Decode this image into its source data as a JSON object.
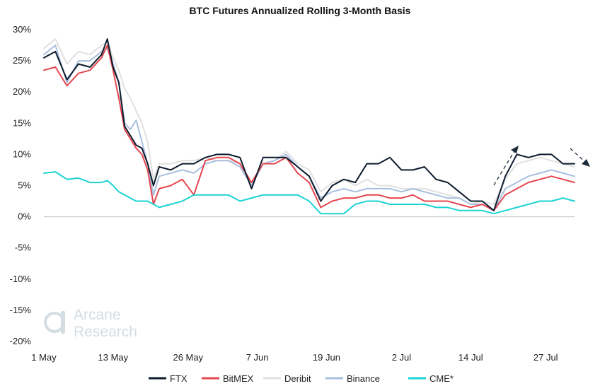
{
  "chart_data": {
    "type": "line",
    "title": "BTC Futures Annualized Rolling 3-Month Basis",
    "xlabel": "",
    "ylabel": "",
    "ylim": [
      -20,
      30
    ],
    "y_ticks": [
      {
        "value": 30,
        "label": "30%"
      },
      {
        "value": 25,
        "label": "25%"
      },
      {
        "value": 20,
        "label": "20%"
      },
      {
        "value": 15,
        "label": "15%"
      },
      {
        "value": 10,
        "label": "10%"
      },
      {
        "value": 5,
        "label": "5%"
      },
      {
        "value": 0,
        "label": "0%"
      },
      {
        "value": -5,
        "label": "-5%"
      },
      {
        "value": -10,
        "label": "-10%"
      },
      {
        "value": -15,
        "label": "-15%"
      },
      {
        "value": -20,
        "label": "-20%"
      }
    ],
    "xlim": [
      0,
      92
    ],
    "x_ticks": [
      {
        "value": 0,
        "label": "1 May"
      },
      {
        "value": 12,
        "label": "13 May"
      },
      {
        "value": 25,
        "label": "26 May"
      },
      {
        "value": 37,
        "label": "7 Jun"
      },
      {
        "value": 49,
        "label": "19 Jun"
      },
      {
        "value": 62,
        "label": "2 Jul"
      },
      {
        "value": 74,
        "label": "14 Jul"
      },
      {
        "value": 87,
        "label": "27 Jul"
      }
    ],
    "x": [
      0,
      2,
      4,
      6,
      8,
      10,
      11,
      12,
      13,
      14,
      15,
      16,
      17,
      18,
      19,
      20,
      22,
      24,
      26,
      28,
      30,
      32,
      34,
      36,
      38,
      40,
      42,
      44,
      46,
      48,
      50,
      52,
      54,
      56,
      58,
      60,
      62,
      64,
      66,
      68,
      70,
      72,
      74,
      76,
      78,
      80,
      82,
      84,
      86,
      88,
      90,
      92
    ],
    "series": [
      {
        "name": "FTX",
        "color": "#0d1b2e",
        "values": [
          25.5,
          26.5,
          22.0,
          24.5,
          24.0,
          26.0,
          28.5,
          24.0,
          21.5,
          14.5,
          13.0,
          11.5,
          11.0,
          8.5,
          5.0,
          8.0,
          7.5,
          8.5,
          8.5,
          9.5,
          10.0,
          10.0,
          9.5,
          4.5,
          9.5,
          9.5,
          9.5,
          8.0,
          6.5,
          2.5,
          5.0,
          6.0,
          5.5,
          8.5,
          8.5,
          9.5,
          7.5,
          7.5,
          8.0,
          6.0,
          5.5,
          4.0,
          2.5,
          2.5,
          1.0,
          6.5,
          10.0,
          9.5,
          10.0,
          10.0,
          8.5,
          8.5
        ]
      },
      {
        "name": "BitMEX",
        "color": "#e5474f",
        "values": [
          23.5,
          24.0,
          21.0,
          23.0,
          23.5,
          25.5,
          27.5,
          23.5,
          19.0,
          14.0,
          12.5,
          11.0,
          10.0,
          7.5,
          2.0,
          4.5,
          5.0,
          6.0,
          3.5,
          9.0,
          9.5,
          9.5,
          8.5,
          5.5,
          8.5,
          8.5,
          9.5,
          7.0,
          5.5,
          1.5,
          2.5,
          3.0,
          3.0,
          3.5,
          3.5,
          3.0,
          3.0,
          3.5,
          2.5,
          2.5,
          2.5,
          2.0,
          1.5,
          2.0,
          1.0,
          3.5,
          4.5,
          5.5,
          6.0,
          6.5,
          6.0,
          5.5
        ]
      },
      {
        "name": "Deribit",
        "color": "#e0e0e0",
        "values": [
          27.0,
          28.5,
          24.5,
          26.5,
          26.0,
          27.5,
          28.0,
          25.5,
          23.5,
          20.5,
          19.0,
          17.0,
          15.0,
          12.0,
          6.0,
          8.5,
          8.5,
          9.0,
          9.0,
          9.5,
          9.0,
          9.0,
          8.5,
          5.0,
          8.5,
          9.0,
          10.5,
          8.5,
          7.5,
          4.0,
          5.5,
          6.0,
          5.0,
          6.0,
          5.0,
          5.0,
          4.5,
          4.5,
          4.5,
          4.0,
          3.5,
          3.0,
          2.0,
          2.5,
          2.0,
          6.0,
          8.5,
          9.0,
          9.5,
          9.0,
          8.5,
          8.0
        ]
      },
      {
        "name": "Binance",
        "color": "#a9bfe0",
        "values": [
          26.0,
          27.5,
          21.5,
          25.0,
          25.0,
          26.5,
          27.0,
          24.5,
          21.5,
          15.0,
          14.0,
          15.5,
          12.0,
          8.5,
          3.5,
          6.5,
          7.0,
          7.5,
          7.0,
          8.5,
          9.0,
          9.0,
          8.0,
          5.0,
          8.5,
          9.0,
          10.0,
          8.0,
          6.5,
          3.0,
          4.0,
          4.5,
          4.0,
          4.5,
          4.5,
          4.5,
          4.0,
          4.5,
          4.0,
          3.5,
          3.0,
          3.0,
          2.0,
          2.0,
          1.0,
          4.5,
          5.5,
          6.5,
          7.0,
          7.5,
          7.0,
          6.5
        ]
      },
      {
        "name": "CME*",
        "color": "#1dd3d3",
        "values": [
          7.0,
          7.2,
          6.0,
          6.2,
          5.5,
          5.5,
          5.8,
          5.0,
          4.0,
          3.5,
          3.0,
          2.5,
          2.5,
          2.5,
          2.0,
          1.5,
          2.0,
          2.5,
          3.5,
          3.5,
          3.5,
          3.5,
          2.5,
          3.0,
          3.5,
          3.5,
          3.5,
          3.5,
          2.5,
          0.5,
          0.5,
          0.5,
          2.0,
          2.5,
          2.5,
          2.0,
          2.0,
          2.0,
          2.0,
          1.5,
          1.5,
          1.0,
          1.0,
          1.0,
          0.5,
          1.0,
          1.5,
          2.0,
          2.5,
          2.5,
          3.0,
          2.5
        ]
      }
    ],
    "annotations": [
      "trend-arrow-up",
      "trend-arrow-down"
    ],
    "legend_position": "bottom-center",
    "grid": false
  },
  "watermark": {
    "line1": "Arcane",
    "line2": "Research"
  },
  "colors": {
    "axis": "#bfbfbf",
    "watermark": "#d3dde2"
  }
}
